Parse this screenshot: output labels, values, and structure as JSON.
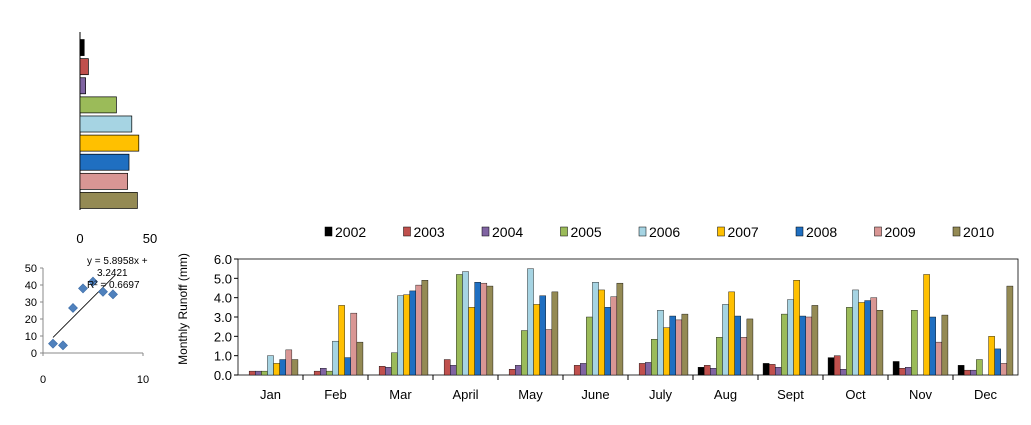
{
  "chart_data": [
    {
      "type": "bar",
      "orientation": "horizontal",
      "series_names": [
        "2002",
        "2003",
        "2004",
        "2005",
        "2006",
        "2007",
        "2008",
        "2009",
        "2010"
      ],
      "values": [
        3,
        6,
        4,
        26,
        37,
        42,
        35,
        34,
        41
      ],
      "xticks": [
        "0",
        "50"
      ],
      "xlim": [
        0,
        50
      ]
    },
    {
      "type": "scatter",
      "points": [
        [
          1,
          5.5
        ],
        [
          2,
          4.5
        ],
        [
          3,
          26.5
        ],
        [
          4,
          38
        ],
        [
          5,
          42
        ],
        [
          6,
          36
        ],
        [
          7,
          34.5
        ]
      ],
      "trendline": {
        "slope": 5.8958,
        "intercept": 3.2421
      },
      "equation_text": [
        "y = 5.8958x +",
        "3.2421",
        "R² = 0.6697"
      ],
      "xticks": [
        "0",
        "10"
      ],
      "yticks": [
        "0",
        "10",
        "20",
        "30",
        "40",
        "50"
      ],
      "xlim": [
        0,
        10
      ],
      "ylim": [
        0,
        50
      ]
    },
    {
      "type": "bar",
      "categories": [
        "Jan",
        "Feb",
        "Mar",
        "April",
        "May",
        "June",
        "July",
        "Aug",
        "Sept",
        "Oct",
        "Nov",
        "Dec"
      ],
      "ylabel": "Monthly  Runoff (mm)",
      "ylim": [
        0,
        6
      ],
      "yticks": [
        "0.0",
        "1.0",
        "2.0",
        "3.0",
        "4.0",
        "5.0",
        "6.0"
      ],
      "legend_position": "top",
      "series": [
        {
          "name": "2002",
          "color": "#000000",
          "values": [
            0,
            0,
            0,
            0,
            0,
            0,
            0,
            0.4,
            0.6,
            0.9,
            0.7,
            0.5
          ]
        },
        {
          "name": "2003",
          "color": "#c0504d",
          "values": [
            0.2,
            0.2,
            0.45,
            0.8,
            0.3,
            0.5,
            0.6,
            0.5,
            0.55,
            1.0,
            0.35,
            0.25
          ]
        },
        {
          "name": "2004",
          "color": "#8064a2",
          "values": [
            0.2,
            0.35,
            0.4,
            0.5,
            0.5,
            0.6,
            0.65,
            0.35,
            0.4,
            0.3,
            0.4,
            0.25
          ]
        },
        {
          "name": "2005",
          "color": "#9bbb59",
          "values": [
            0.2,
            0.2,
            1.15,
            5.2,
            2.3,
            3.0,
            1.85,
            1.95,
            3.15,
            3.5,
            3.35,
            0.8
          ]
        },
        {
          "name": "2006",
          "color": "#a6d4e3",
          "values": [
            1.0,
            1.75,
            4.1,
            5.35,
            5.5,
            4.8,
            3.35,
            3.65,
            3.9,
            4.4,
            0,
            0
          ]
        },
        {
          "name": "2007",
          "color": "#ffc000",
          "values": [
            0.6,
            3.6,
            4.15,
            3.5,
            3.65,
            4.4,
            2.45,
            4.3,
            4.9,
            3.75,
            5.2,
            2.0
          ]
        },
        {
          "name": "2008",
          "color": "#1f6fc1",
          "values": [
            0.8,
            0.9,
            4.35,
            4.8,
            4.1,
            3.5,
            3.05,
            3.05,
            3.05,
            3.85,
            3.0,
            1.35
          ]
        },
        {
          "name": "2009",
          "color": "#d99694",
          "values": [
            1.3,
            3.2,
            4.65,
            4.75,
            2.35,
            4.05,
            2.85,
            1.95,
            3.0,
            4.0,
            1.7,
            0.6
          ]
        },
        {
          "name": "2010",
          "color": "#948a54",
          "values": [
            0.8,
            1.7,
            4.9,
            4.6,
            4.3,
            4.75,
            3.15,
            2.9,
            3.6,
            3.35,
            3.1,
            4.6
          ]
        }
      ]
    }
  ]
}
